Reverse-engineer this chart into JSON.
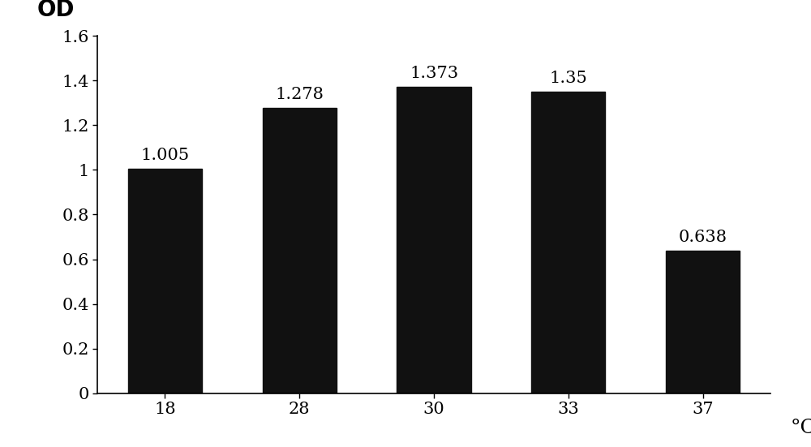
{
  "categories": [
    "18",
    "28",
    "30",
    "33",
    "37"
  ],
  "values": [
    1.005,
    1.278,
    1.373,
    1.35,
    0.638
  ],
  "bar_color": "#111111",
  "bar_width": 0.55,
  "celsius_label": "°C",
  "ylabel": "OD",
  "ylim": [
    0,
    1.6
  ],
  "yticks": [
    0,
    0.2,
    0.4,
    0.6,
    0.8,
    1.0,
    1.2,
    1.4,
    1.6
  ],
  "ytick_labels": [
    "0",
    "0.2",
    "0.4",
    "0.6",
    "0.8",
    "1",
    "1.2",
    "1.4",
    "1.6"
  ],
  "bar_labels": [
    "1.005",
    "1.278",
    "1.373",
    "1.35",
    "0.638"
  ],
  "label_fontsize": 15,
  "axis_label_fontsize": 18,
  "tick_fontsize": 15,
  "background_color": "#ffffff"
}
